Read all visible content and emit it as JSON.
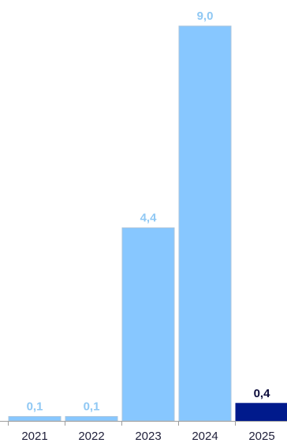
{
  "chart_data": {
    "type": "bar",
    "categories": [
      "2021",
      "2022",
      "2023",
      "2024",
      "2025"
    ],
    "values": [
      0.1,
      0.1,
      4.4,
      9.0,
      0.4
    ],
    "value_labels": [
      "0,1",
      "0,1",
      "4,4",
      "9,0",
      "0,4"
    ],
    "ylim": [
      0,
      9.0
    ],
    "grid": false,
    "colors": {
      "bar": "#87c7ff",
      "bar_highlight": "#001a8c",
      "bar_border": "#a9c4dc",
      "label": "#8fc8f4",
      "label_highlight": "#0c0c3c",
      "axis": "#9e9e9e"
    },
    "highlight_index": 4
  }
}
